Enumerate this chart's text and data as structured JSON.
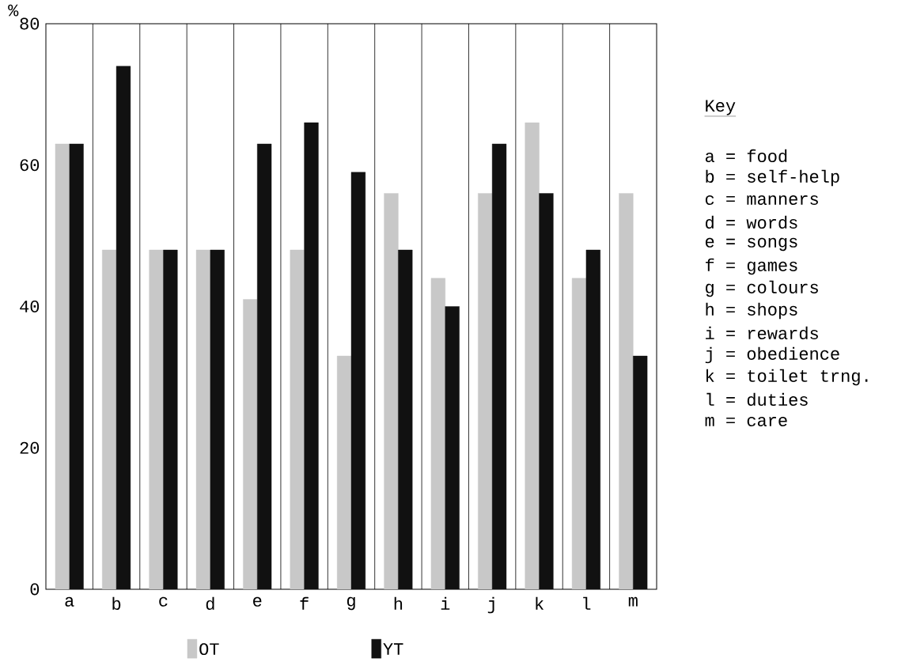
{
  "chart_data": {
    "type": "bar",
    "ylabel": "%",
    "categories": [
      "a",
      "b",
      "c",
      "d",
      "e",
      "f",
      "g",
      "h",
      "i",
      "j",
      "k",
      "l",
      "m"
    ],
    "series": [
      {
        "name": "OT",
        "color": "#c8c8c8",
        "values": [
          63,
          48,
          48,
          48,
          41,
          48,
          33,
          56,
          44,
          56,
          66,
          44,
          56
        ]
      },
      {
        "name": "YT",
        "color": "#111111",
        "values": [
          63,
          74,
          48,
          48,
          63,
          66,
          59,
          48,
          40,
          63,
          56,
          48,
          33
        ]
      }
    ],
    "ylim": [
      0,
      80
    ],
    "yticks": [
      0,
      20,
      40,
      60,
      80
    ],
    "grid": "x",
    "legend": "bottom",
    "annotations": [
      "Key",
      "a = food",
      "b = self-help",
      "c = manners",
      "d = words",
      "e = songs",
      "f = games",
      "g = colours",
      "h = shops",
      "i = rewards",
      "j = obedience",
      "k = toilet trng.",
      "l = duties",
      "m = care"
    ]
  }
}
